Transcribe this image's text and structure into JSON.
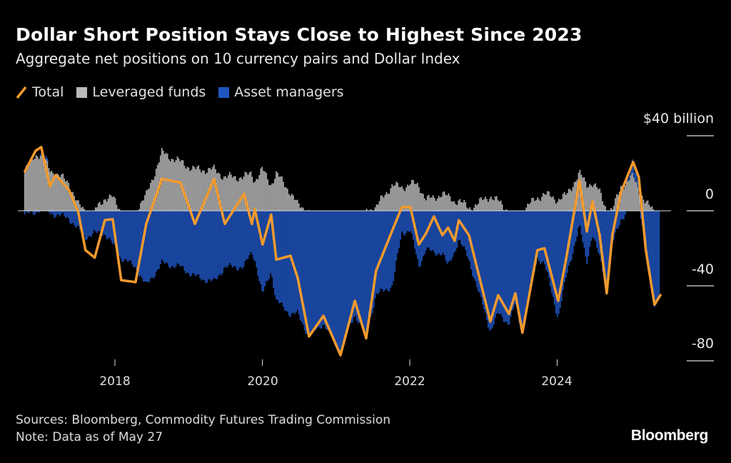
{
  "title": "Dollar Short Position Stays Close to Highest Since 2023",
  "subtitle": "Aggregate net positions on 10 currency pairs and Dollar Index",
  "footer": {
    "sources": "Sources: Bloomberg, Commodity Futures Trading Commission",
    "note": "Note: Data as of May 27",
    "logo": "Bloomberg"
  },
  "colors": {
    "background": "#000000",
    "total": "#f29a2e",
    "leveraged_funds": "#b9b9b9",
    "asset_managers": "#1f55c2"
  },
  "chart_data": {
    "type": "bar+line",
    "title": "Dollar Short Position Stays Close to Highest Since 2023",
    "subtitle": "Aggregate net positions on 10 currency pairs and Dollar Index",
    "legend": [
      "Total",
      "Leveraged funds",
      "Asset managers"
    ],
    "legend_position": "top-left",
    "y_unit_label": "$40 billion",
    "yticks": [
      40,
      0,
      -40,
      -80
    ],
    "ytick_labels": [
      "$40 billion",
      "0",
      "-40",
      "-80"
    ],
    "ylim": [
      -82,
      42
    ],
    "xticks": [
      "2018",
      "2020",
      "2022",
      "2024"
    ],
    "grid": false,
    "x": [
      "2016-10-12",
      "2016-12-04",
      "2017-01-01",
      "2017-02-13",
      "2017-03-13",
      "2017-05-19",
      "2017-07-04",
      "2017-08-08",
      "2017-09-23",
      "2017-11-12",
      "2017-12-21",
      "2018-02-01",
      "2018-04-13",
      "2018-06-05",
      "2018-08-22",
      "2018-11-22",
      "2019-02-01",
      "2019-05-07",
      "2019-06-29",
      "2019-10-02",
      "2019-11-10",
      "2019-11-24",
      "2020-01-02",
      "2020-02-14",
      "2020-03-10",
      "2020-05-20",
      "2020-06-25",
      "2020-08-20",
      "2020-10-30",
      "2021-01-23",
      "2021-04-04",
      "2021-05-30",
      "2021-07-18",
      "2021-10-08",
      "2021-11-23",
      "2022-01-04",
      "2022-02-15",
      "2022-03-23",
      "2022-05-01",
      "2022-06-12",
      "2022-07-10",
      "2022-08-11",
      "2022-09-01",
      "2022-10-21",
      "2023-02-04",
      "2023-03-15",
      "2023-05-07",
      "2023-06-08",
      "2023-07-13",
      "2023-09-25",
      "2023-10-30",
      "2024-01-06",
      "2024-02-14",
      "2024-04-21",
      "2024-05-27",
      "2024-06-24",
      "2024-07-30",
      "2024-09-03",
      "2024-10-01",
      "2024-11-13",
      "2025-01-12",
      "2025-02-09",
      "2025-03-16",
      "2025-04-28",
      "2025-05-27"
    ],
    "series": [
      {
        "name": "Total",
        "kind": "line",
        "values": [
          21,
          32,
          34,
          13,
          19,
          11,
          -1,
          -21,
          -25,
          -5,
          -4.5,
          -37,
          -38,
          -7,
          17,
          15,
          -7,
          17,
          -7,
          9,
          -7,
          1,
          -18,
          -2,
          -26,
          -24,
          -36,
          -67,
          -56,
          -77,
          -48,
          -68,
          -32,
          -10,
          2,
          2,
          -18,
          -12,
          -3,
          -13,
          -9,
          -16,
          -5,
          -13,
          -59,
          -45,
          -55,
          -44,
          -65,
          -21,
          -20,
          -48,
          -26,
          16,
          -11,
          5,
          -13,
          -44,
          -13,
          10,
          26,
          18,
          -21,
          -50,
          -45
        ]
      },
      {
        "name": "Leveraged funds",
        "kind": "bar",
        "values": [
          21,
          30,
          30,
          22,
          20,
          15,
          3,
          0,
          0,
          7,
          7,
          0,
          0,
          8,
          31,
          26,
          22,
          22,
          18,
          18,
          20,
          16,
          22,
          14,
          20,
          10,
          3,
          0,
          0,
          0,
          0,
          0,
          2,
          14,
          12,
          15,
          13,
          7,
          6,
          10,
          7,
          5,
          6,
          1,
          8,
          5,
          0,
          0,
          0,
          7,
          9,
          6,
          8,
          20,
          14,
          15,
          10,
          1,
          0,
          13,
          18,
          12,
          4,
          0,
          0
        ]
      },
      {
        "name": "Asset managers",
        "kind": "bar",
        "values": [
          -2,
          -1,
          2,
          -1,
          -2,
          -4,
          -10,
          -14,
          -12,
          -12,
          -18,
          -25,
          -30,
          -40,
          -28,
          -30,
          -35,
          -38,
          -30,
          -30,
          -22,
          -25,
          -45,
          -32,
          -48,
          -55,
          -55,
          -67,
          -60,
          -75,
          -55,
          -67,
          -45,
          -40,
          -12,
          -10,
          -30,
          -20,
          -23,
          -22,
          -30,
          -22,
          -15,
          -26,
          -64,
          -55,
          -60,
          -50,
          -66,
          -25,
          -28,
          -57,
          -36,
          -8,
          -28,
          -12,
          -25,
          -40,
          -18,
          -5,
          6,
          4,
          -20,
          -50,
          -45
        ]
      }
    ]
  }
}
